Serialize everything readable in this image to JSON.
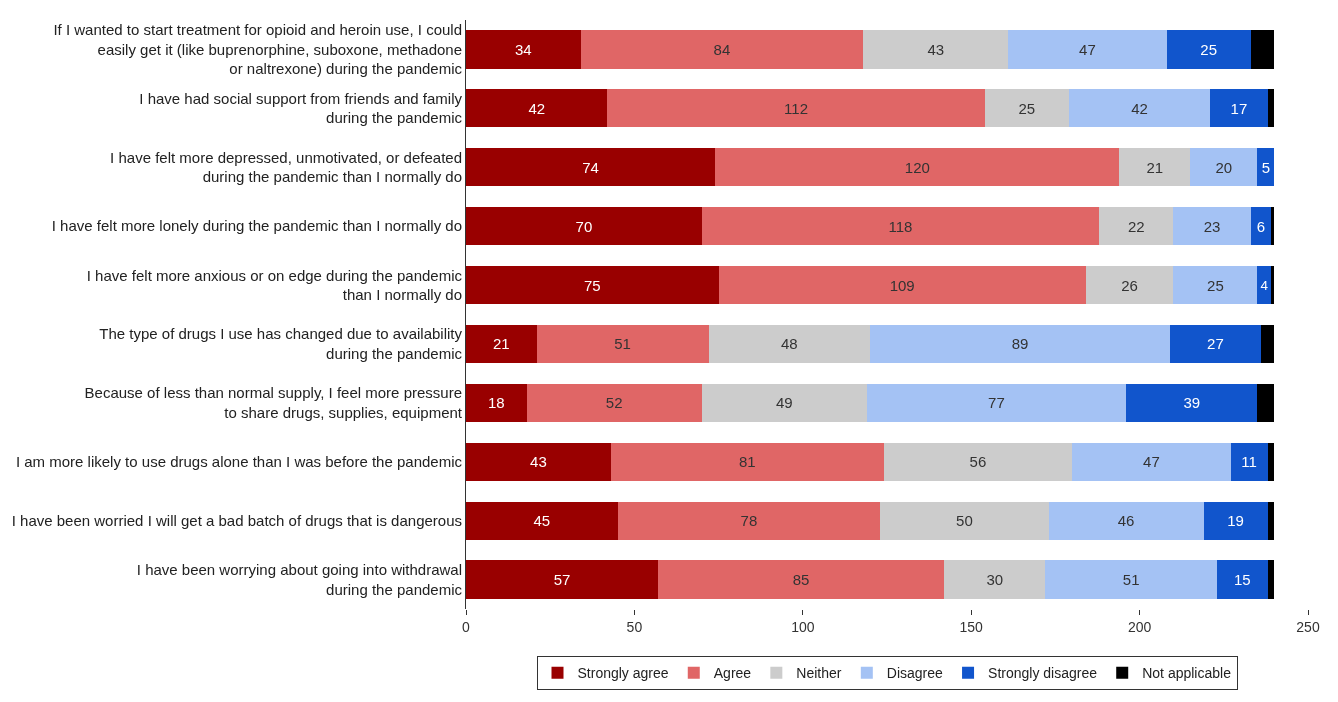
{
  "chart_data": {
    "type": "bar",
    "orientation": "horizontal",
    "stacked": true,
    "categories": [
      "If I wanted to start treatment for opioid and heroin use, I could\neasily get it (like buprenorphine, suboxone, methadone\nor naltrexone) during the pandemic",
      "I have had social support from friends and family\nduring the pandemic",
      "I have felt more depressed, unmotivated, or defeated\nduring the pandemic than I normally do",
      "I have felt more lonely during the pandemic than I normally do",
      "I have felt more anxious or on edge during the pandemic\nthan I normally do",
      "The type of drugs I use has changed due to availability\nduring the pandemic",
      "Because of less than normal supply, I feel more pressure\nto share drugs, supplies, equipment",
      "I am more likely to use drugs alone than I was before the pandemic",
      "I have been worried I will get a bad batch of drugs that is dangerous",
      "I have been worrying about going into withdrawal\nduring the pandemic"
    ],
    "series": [
      {
        "name": "Strongly agree",
        "color": "#990000",
        "values": [
          34,
          42,
          74,
          70,
          75,
          21,
          18,
          43,
          45,
          57
        ],
        "value_labels": [
          "34",
          "42",
          "74",
          "70",
          "75",
          "21",
          "18",
          "43",
          "45",
          "57"
        ]
      },
      {
        "name": "Agree",
        "color": "#e06666",
        "values": [
          84,
          112,
          120,
          118,
          109,
          51,
          52,
          81,
          78,
          85
        ],
        "value_labels": [
          "84",
          "112",
          "120",
          "118",
          "109",
          "51",
          "52",
          "81",
          "78",
          "85"
        ]
      },
      {
        "name": "Neither",
        "color": "#cccccc",
        "values": [
          43,
          25,
          21,
          22,
          26,
          48,
          49,
          56,
          50,
          30
        ],
        "value_labels": [
          "43",
          "25",
          "21",
          "22",
          "26",
          "48",
          "49",
          "56",
          "50",
          "30"
        ]
      },
      {
        "name": "Disagree",
        "color": "#a4c2f4",
        "values": [
          47,
          42,
          20,
          23,
          25,
          89,
          77,
          47,
          46,
          51
        ],
        "value_labels": [
          "47",
          "42",
          "20",
          "23",
          "25",
          "89",
          "77",
          "47",
          "46",
          "51"
        ]
      },
      {
        "name": "Strongly disagree",
        "color": "#1155cc",
        "values": [
          25,
          17,
          5,
          6,
          4,
          27,
          39,
          11,
          19,
          15
        ],
        "value_labels": [
          "25",
          "17",
          "5",
          "6",
          "4",
          "27",
          "39",
          "11",
          "19",
          "15"
        ]
      },
      {
        "name": "Not applicable",
        "color": "#000000",
        "values": [
          7,
          2,
          0,
          1,
          1,
          4,
          5,
          2,
          2,
          2
        ]
      }
    ],
    "xlim": [
      0,
      250
    ],
    "xticks": [
      0,
      50,
      100,
      150,
      200,
      250
    ],
    "legend": "bottom"
  }
}
